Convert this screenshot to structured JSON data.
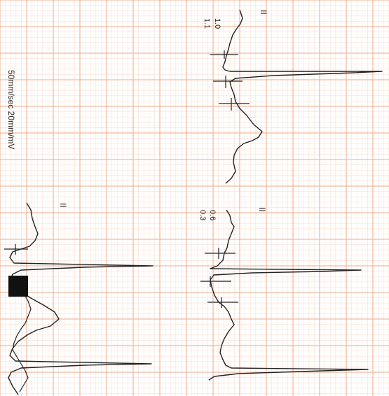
{
  "panels": {
    "top": {
      "lead": "II",
      "values": [
        "1.0",
        "1.1"
      ]
    },
    "middle": {
      "lead": "II",
      "values": [
        "0.6",
        "0.3"
      ]
    },
    "bottom": {
      "lead": "II"
    }
  },
  "settings": {
    "speed_gain": "50mm/sec 20mm/mV"
  },
  "colors": {
    "paper": "#ffffff",
    "grid_major": "#f0a98a",
    "grid_minor": "#fbe1d3",
    "trace": "#222222"
  }
}
